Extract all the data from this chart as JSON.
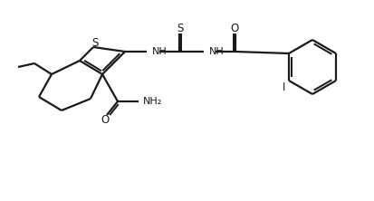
{
  "background_color": "#ffffff",
  "line_color": "#1a1a1a",
  "line_width": 1.6,
  "fig_width": 4.14,
  "fig_height": 2.22,
  "dpi": 100,
  "atoms": {
    "S_label": "S",
    "NH_label": "NH",
    "S2_label": "S",
    "NH2_label": "NH",
    "O_label": "O",
    "I_label": "I",
    "O2_label": "O",
    "NH3_label": "NH₂"
  }
}
